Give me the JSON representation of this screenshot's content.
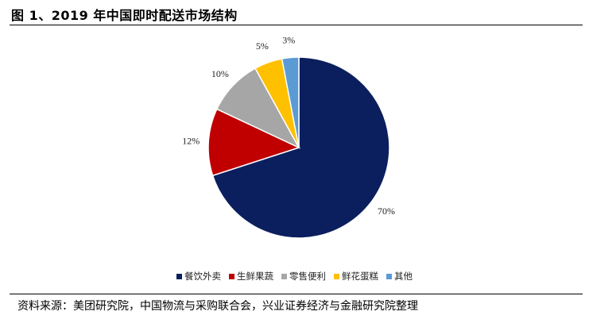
{
  "figure": {
    "title": "图 1、2019 年中国即时配送市场结构",
    "source": "资料来源：美团研究院，中国物流与采购联合会，兴业证券经济与金融研究院整理"
  },
  "chart_data": {
    "type": "pie",
    "title": "",
    "categories": [
      "餐饮外卖",
      "生鲜果蔬",
      "零售便利",
      "鲜花蛋糕",
      "其他"
    ],
    "values": [
      70,
      12,
      10,
      5,
      3
    ],
    "value_labels": [
      "70%",
      "12%",
      "10%",
      "5%",
      "3%"
    ],
    "colors": [
      "#0b1f5e",
      "#c00000",
      "#a6a6a6",
      "#ffc000",
      "#5b9bd5"
    ],
    "start_angle_deg": 0,
    "direction": "clockwise",
    "legend": "bottom",
    "unit": "%"
  }
}
